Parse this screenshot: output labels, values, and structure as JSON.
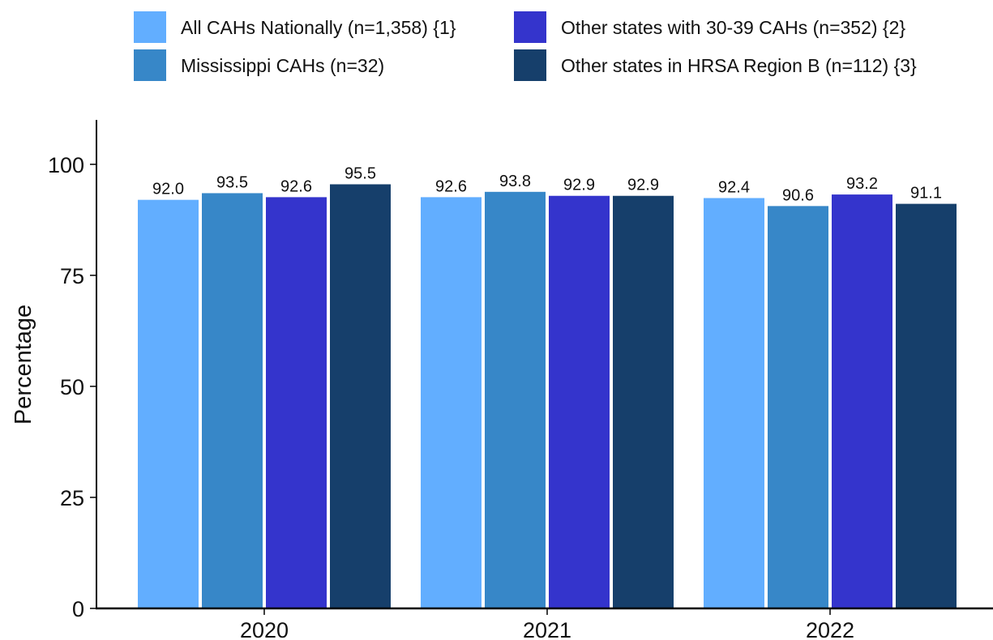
{
  "chart_data": {
    "type": "bar",
    "title": "",
    "xlabel": "",
    "ylabel": "Percentage",
    "ylim": [
      0,
      110
    ],
    "yticks": [
      0,
      25,
      50,
      75,
      100
    ],
    "categories": [
      "2020",
      "2021",
      "2022"
    ],
    "grid": false,
    "legend_position": "top",
    "series": [
      {
        "name": "All CAHs Nationally (n=1,358) {1}",
        "color": "#62aeff",
        "values": [
          92.0,
          92.6,
          92.4
        ],
        "labels": [
          "92.0",
          "92.6",
          "92.4"
        ]
      },
      {
        "name": "Mississippi CAHs (n=32)",
        "color": "#3787c8",
        "values": [
          93.5,
          93.8,
          90.6
        ],
        "labels": [
          "93.5",
          "93.8",
          "90.6"
        ]
      },
      {
        "name": "Other states with 30-39 CAHs (n=352) {2}",
        "color": "#3434cc",
        "values": [
          92.6,
          92.9,
          93.2
        ],
        "labels": [
          "92.6",
          "92.9",
          "93.2"
        ]
      },
      {
        "name": "Other states in HRSA Region B (n=112) {3}",
        "color": "#163f6b",
        "values": [
          95.5,
          92.9,
          91.1
        ],
        "labels": [
          "95.5",
          "92.9",
          "91.1"
        ]
      }
    ]
  }
}
